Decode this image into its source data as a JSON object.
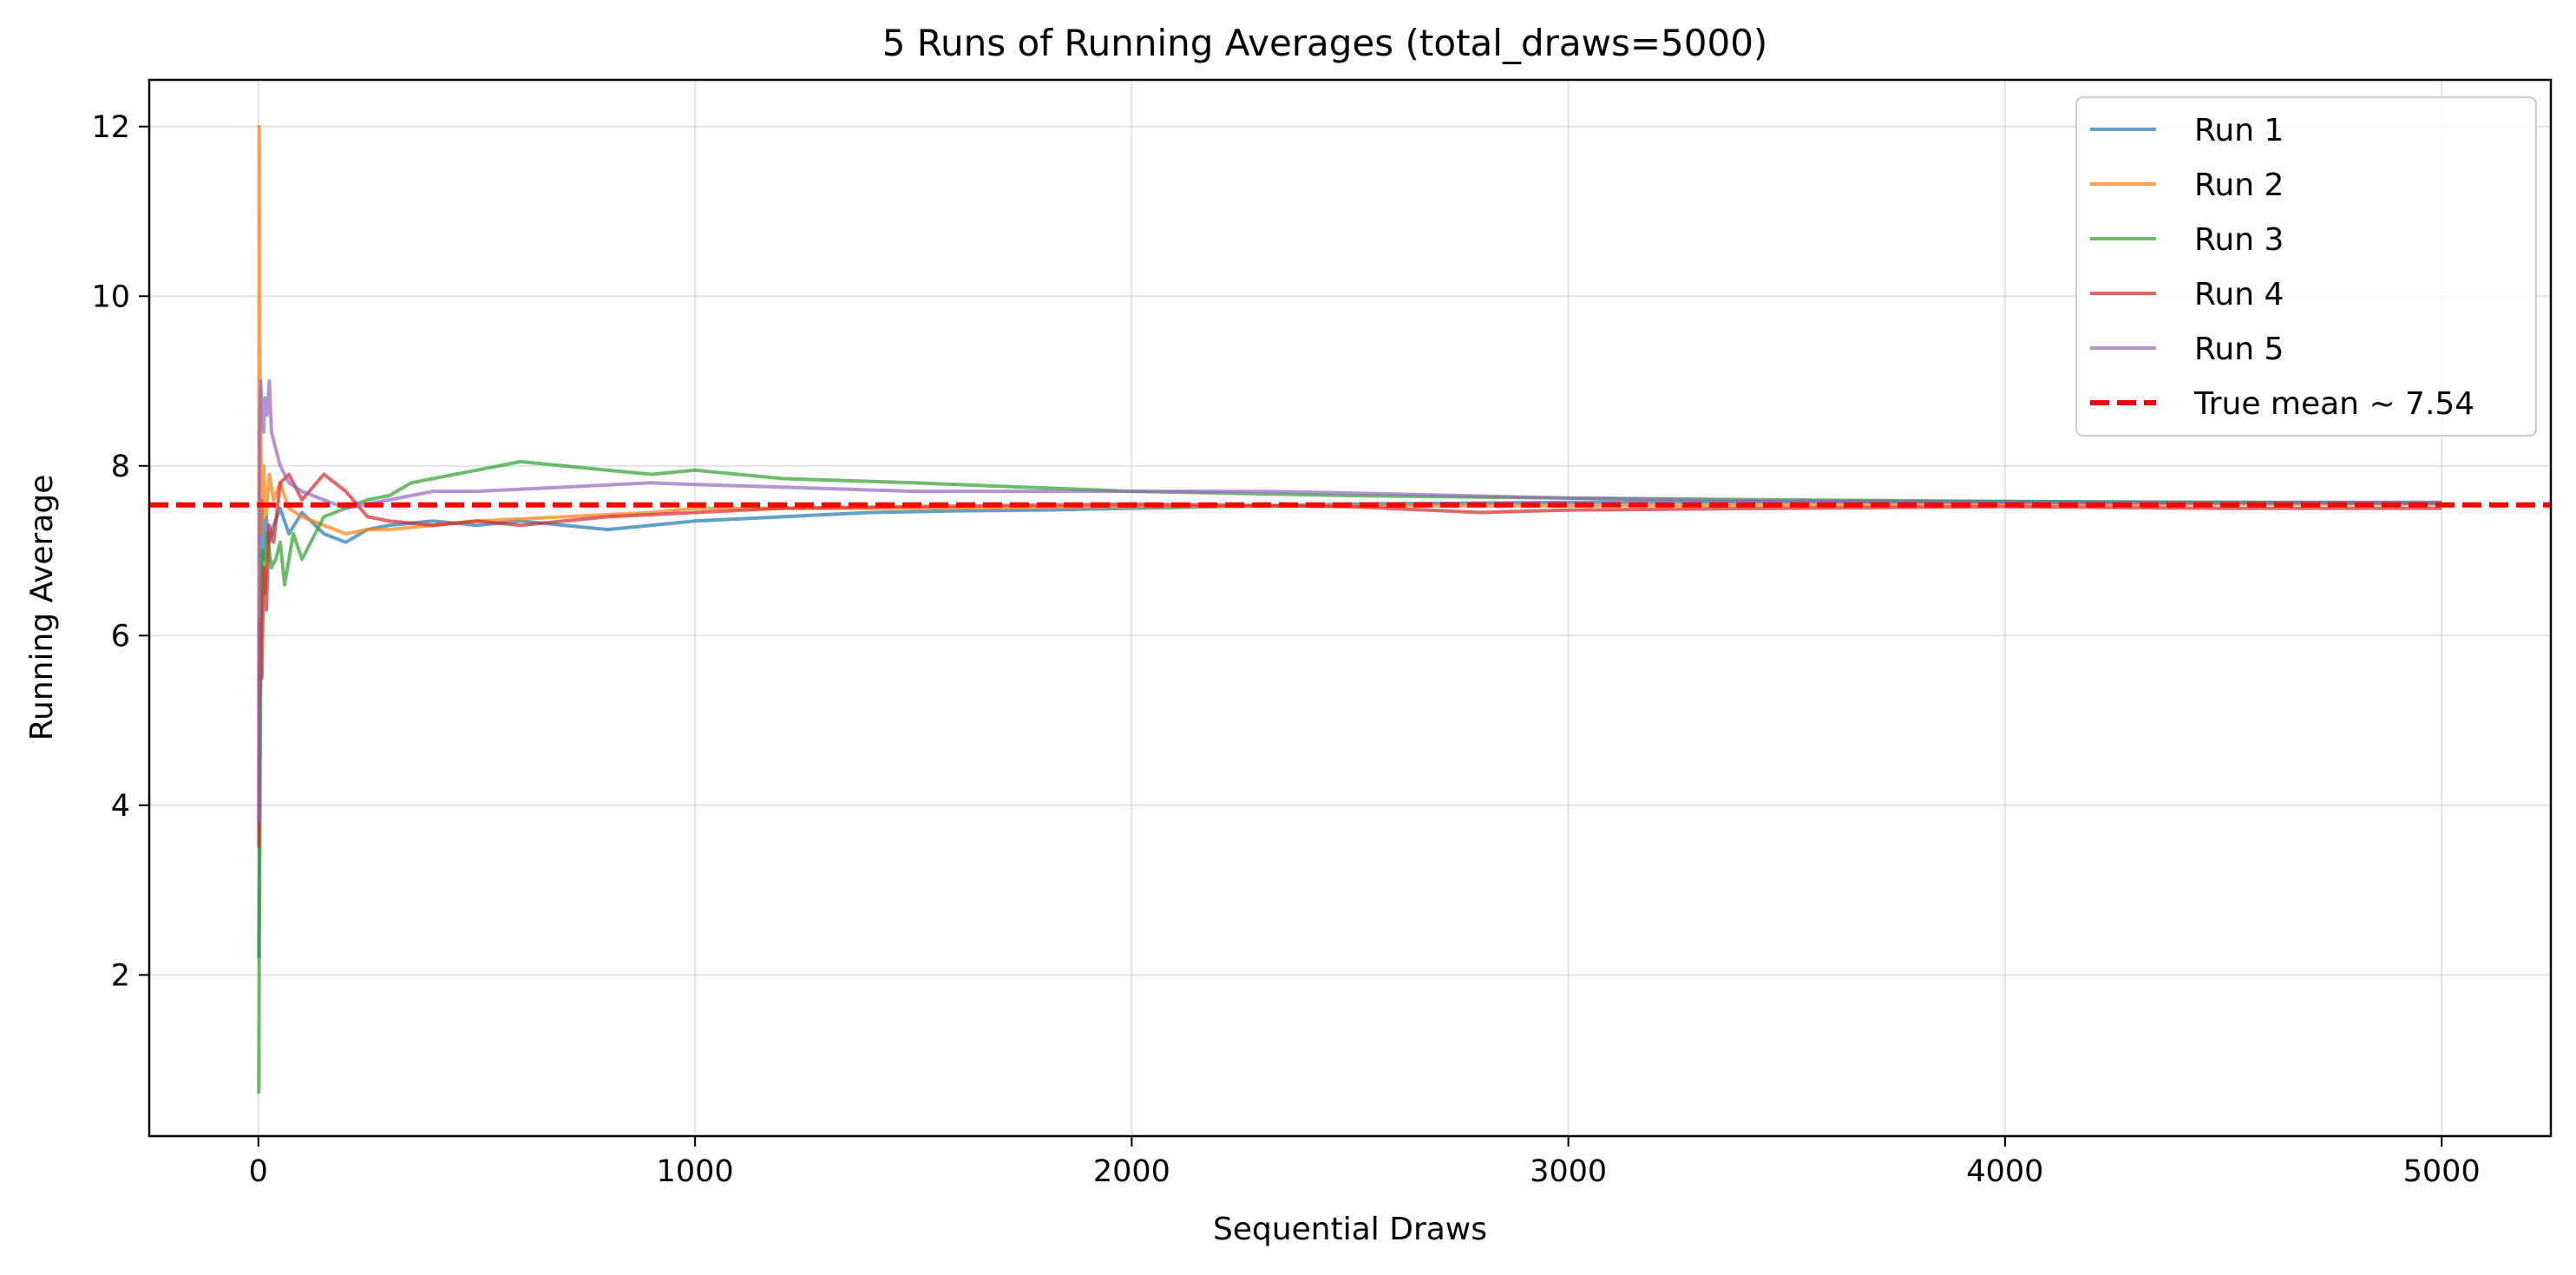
{
  "chart_data": {
    "type": "line",
    "title": "5 Runs of Running Averages (total_draws=5000)",
    "xlabel": "Sequential Draws",
    "ylabel": "Running Average",
    "xlim": [
      -250,
      5250
    ],
    "ylim": [
      0.1,
      12.55
    ],
    "x_ticks": [
      0,
      1000,
      2000,
      3000,
      4000,
      5000
    ],
    "y_ticks": [
      2,
      4,
      6,
      8,
      10,
      12
    ],
    "grid": true,
    "legend_position": "top-right",
    "total_draws": 5000,
    "series": [
      {
        "name": "Run 1",
        "color": "#1f77b4",
        "x": [
          1,
          3,
          5,
          8,
          12,
          18,
          25,
          35,
          50,
          70,
          100,
          150,
          200,
          250,
          300,
          400,
          500,
          600,
          700,
          800,
          900,
          1000,
          1200,
          1400,
          1600,
          1800,
          2000,
          2500,
          3000,
          3500,
          4000,
          4500,
          5000
        ],
        "y": [
          2.2,
          4.5,
          6.4,
          7.6,
          6.9,
          7.4,
          7.1,
          7.3,
          7.5,
          7.2,
          7.45,
          7.2,
          7.1,
          7.25,
          7.3,
          7.35,
          7.3,
          7.35,
          7.3,
          7.25,
          7.3,
          7.35,
          7.4,
          7.45,
          7.47,
          7.48,
          7.5,
          7.55,
          7.57,
          7.58,
          7.58,
          7.57,
          7.57
        ]
      },
      {
        "name": "Run 2",
        "color": "#ff7f0e",
        "x": [
          1,
          2,
          3,
          5,
          8,
          12,
          18,
          25,
          35,
          50,
          70,
          100,
          150,
          200,
          250,
          300,
          400,
          500,
          700,
          900,
          1000,
          1200,
          1500,
          2000,
          2500,
          3000,
          3500,
          4000,
          4500,
          5000
        ],
        "y": [
          5.0,
          12.0,
          9.6,
          8.6,
          7.2,
          8.0,
          7.4,
          7.9,
          7.6,
          7.8,
          7.5,
          7.4,
          7.3,
          7.2,
          7.25,
          7.25,
          7.3,
          7.35,
          7.4,
          7.45,
          7.5,
          7.5,
          7.5,
          7.52,
          7.53,
          7.53,
          7.54,
          7.55,
          7.55,
          7.55
        ]
      },
      {
        "name": "Run 3",
        "color": "#2ca02c",
        "x": [
          1,
          2,
          4,
          6,
          10,
          15,
          20,
          30,
          40,
          50,
          60,
          80,
          100,
          150,
          200,
          250,
          300,
          350,
          400,
          500,
          600,
          700,
          800,
          900,
          1000,
          1200,
          1500,
          2000,
          2500,
          3000,
          3500,
          4000,
          4500,
          5000
        ],
        "y": [
          0.6,
          2.2,
          4.5,
          6.0,
          7.0,
          6.5,
          7.2,
          6.8,
          6.9,
          7.1,
          6.6,
          7.2,
          6.9,
          7.4,
          7.5,
          7.6,
          7.65,
          7.8,
          7.85,
          7.95,
          8.05,
          8.0,
          7.95,
          7.9,
          7.95,
          7.85,
          7.8,
          7.7,
          7.65,
          7.62,
          7.6,
          7.58,
          7.57,
          7.56
        ]
      },
      {
        "name": "Run 4",
        "color": "#d62728",
        "x": [
          1,
          2,
          3,
          5,
          8,
          12,
          18,
          25,
          35,
          50,
          70,
          100,
          150,
          200,
          250,
          300,
          400,
          500,
          600,
          700,
          800,
          1000,
          1200,
          1500,
          2000,
          2500,
          2800,
          3000,
          3500,
          4000,
          4500,
          5000
        ],
        "y": [
          3.5,
          6.2,
          5.3,
          5.8,
          5.5,
          6.8,
          6.3,
          7.3,
          7.1,
          7.8,
          7.9,
          7.6,
          7.9,
          7.7,
          7.4,
          7.35,
          7.3,
          7.35,
          7.3,
          7.35,
          7.4,
          7.45,
          7.5,
          7.52,
          7.55,
          7.52,
          7.45,
          7.48,
          7.5,
          7.52,
          7.5,
          7.5
        ]
      },
      {
        "name": "Run 5",
        "color": "#9467bd",
        "x": [
          1,
          2,
          3,
          5,
          8,
          12,
          15,
          20,
          25,
          30,
          40,
          50,
          70,
          100,
          150,
          200,
          300,
          400,
          500,
          700,
          900,
          1000,
          1200,
          1500,
          2000,
          2300,
          2500,
          3000,
          3500,
          4000,
          4500,
          5000
        ],
        "y": [
          3.8,
          7.0,
          8.5,
          9.0,
          8.7,
          8.4,
          8.8,
          8.6,
          9.0,
          8.4,
          8.2,
          8.0,
          7.8,
          7.7,
          7.6,
          7.5,
          7.6,
          7.7,
          7.7,
          7.75,
          7.8,
          7.78,
          7.75,
          7.7,
          7.7,
          7.7,
          7.68,
          7.62,
          7.58,
          7.57,
          7.56,
          7.56
        ]
      }
    ],
    "reference_line": {
      "name": "True mean ~ 7.54",
      "y": 7.54,
      "color": "#ff0000",
      "style": "dashed"
    }
  }
}
